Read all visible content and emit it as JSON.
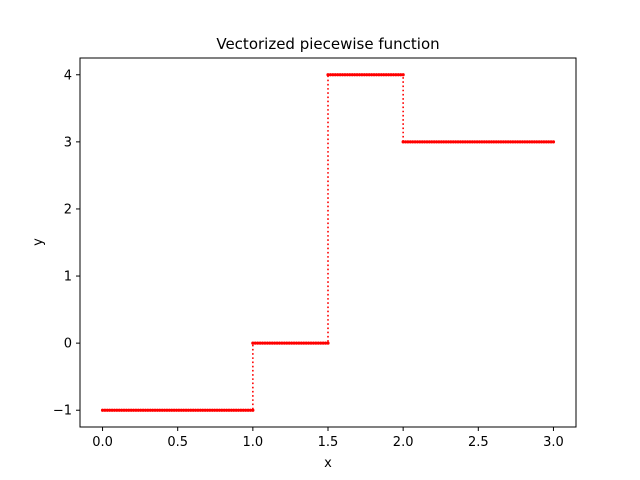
{
  "chart_data": {
    "type": "line",
    "title": "Vectorized piecewise function",
    "xlabel": "x",
    "ylabel": "y",
    "xlim": [
      -0.15,
      3.15
    ],
    "ylim": [
      -1.25,
      4.25
    ],
    "xticks": [
      0.0,
      0.5,
      1.0,
      1.5,
      2.0,
      2.5,
      3.0
    ],
    "xtick_labels": [
      "0.0",
      "0.5",
      "1.0",
      "1.5",
      "2.0",
      "2.5",
      "3.0"
    ],
    "yticks": [
      -1,
      0,
      1,
      2,
      3,
      4
    ],
    "ytick_labels": [
      "−1",
      "0",
      "1",
      "2",
      "3",
      "4"
    ],
    "grid": false,
    "legend": "none",
    "series": [
      {
        "color": "#ff0000",
        "line_style": "dotted",
        "marker": "point",
        "segments": [
          {
            "x_start": 0.0,
            "x_end": 1.0,
            "y": -1
          },
          {
            "x_start": 1.0,
            "x_end": 1.5,
            "y": 0
          },
          {
            "x_start": 1.5,
            "x_end": 2.0,
            "y": 4
          },
          {
            "x_start": 2.0,
            "x_end": 3.0,
            "y": 3
          }
        ]
      }
    ]
  }
}
